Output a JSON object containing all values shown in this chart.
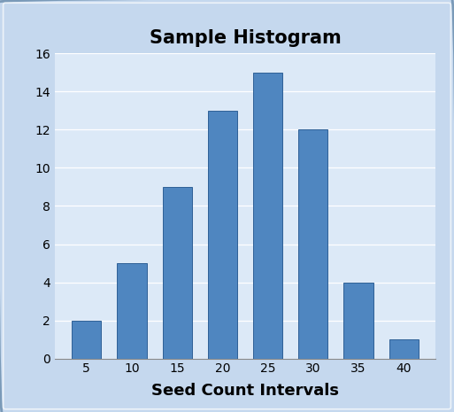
{
  "title": "Sample Histogram",
  "xlabel": "Seed Count Intervals",
  "categories": [
    5,
    10,
    15,
    20,
    25,
    30,
    35,
    40
  ],
  "values": [
    2,
    5,
    9,
    13,
    15,
    12,
    4,
    1
  ],
  "bar_color": "#4F86C0",
  "bar_edge_color": "#2E6096",
  "ylim": [
    0,
    16
  ],
  "yticks": [
    0,
    2,
    4,
    6,
    8,
    10,
    12,
    14,
    16
  ],
  "plot_bg": "#DCE9F7",
  "fig_bg": "#C5D8EE",
  "outer_border_color": "#A0B8D0",
  "inner_border_color": "#FFFFFF",
  "grid_color": "#FFFFFF",
  "title_fontsize": 15,
  "xlabel_fontsize": 13,
  "tick_fontsize": 10,
  "bar_width": 0.65
}
